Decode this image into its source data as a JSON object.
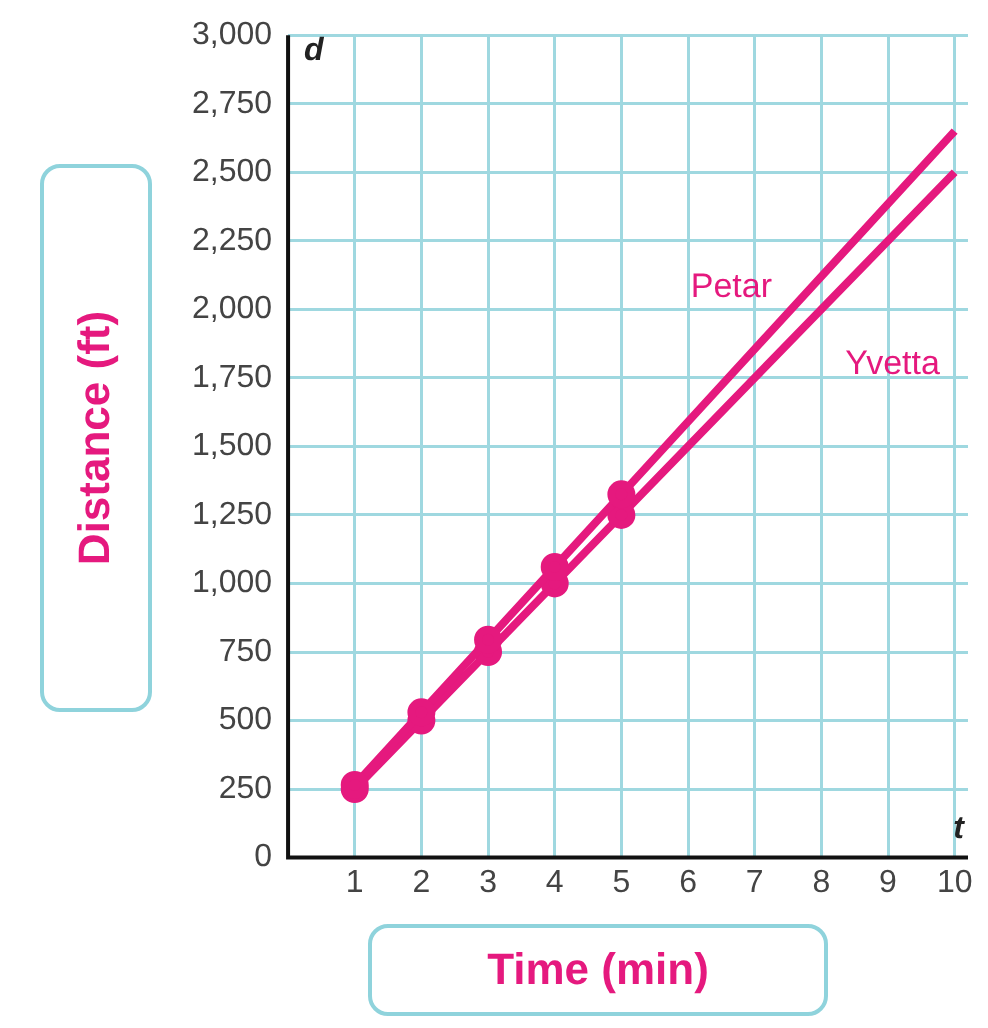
{
  "chart_data": {
    "type": "line",
    "xlabel": "Time (min)",
    "ylabel": "Distance (ft)",
    "x": [
      1,
      2,
      3,
      4,
      5,
      10
    ],
    "series": [
      {
        "name": "Petar",
        "color": "#e5197e",
        "values": [
          265,
          530,
          795,
          1060,
          1325,
          2650
        ]
      },
      {
        "name": "Yvetta",
        "color": "#e5197e",
        "values": [
          250,
          500,
          750,
          1000,
          1250,
          2500
        ]
      }
    ],
    "xlim": [
      0,
      10.2
    ],
    "xticks": [
      1,
      2,
      3,
      4,
      5,
      6,
      7,
      8,
      9,
      10
    ],
    "ylim": [
      0,
      3000
    ],
    "yticks": [
      0,
      250,
      500,
      750,
      {
        "value": 1000,
        "label": "1,000"
      },
      {
        "value": 1250,
        "label": "1,250"
      },
      {
        "value": 1500,
        "label": "1,500"
      },
      {
        "value": 1750,
        "label": "1,750"
      },
      {
        "value": 2000,
        "label": "2,000"
      },
      {
        "value": 2250,
        "label": "2,250"
      },
      {
        "value": 2500,
        "label": "2,500"
      },
      {
        "value": 2750,
        "label": "2,750"
      },
      {
        "value": 3000,
        "label": "3,000"
      }
    ],
    "annotations": [
      "d",
      "t"
    ],
    "grid": true,
    "legend": false,
    "marker": "circle",
    "line_style": "solid"
  }
}
